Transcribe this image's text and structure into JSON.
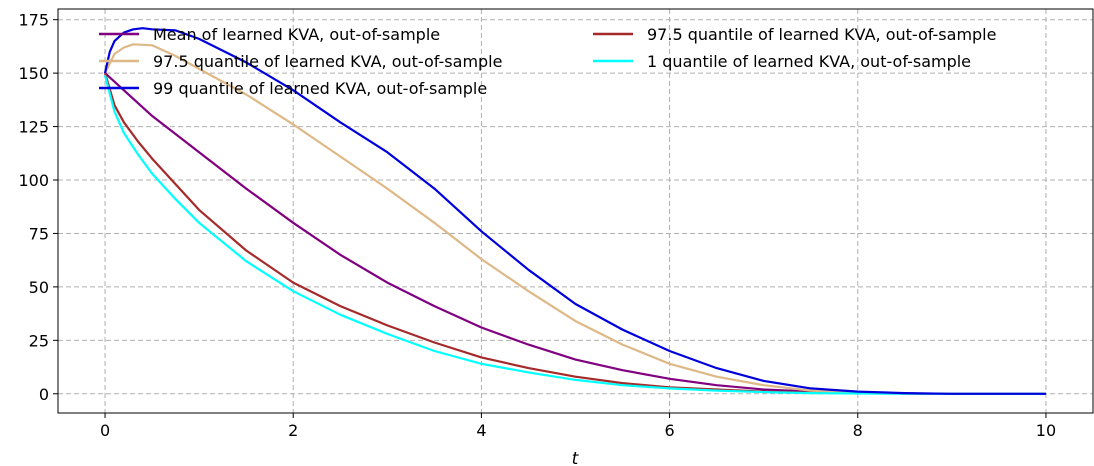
{
  "chart_data": {
    "type": "line",
    "title": "",
    "xlabel": "t",
    "ylabel": "",
    "xlim": [
      -0.5,
      10.5
    ],
    "ylim": [
      -9,
      180
    ],
    "xticks": [
      0,
      2,
      4,
      6,
      8,
      10
    ],
    "yticks": [
      0,
      25,
      50,
      75,
      100,
      125,
      150,
      175
    ],
    "xtick_labels": [
      "0",
      "2",
      "4",
      "6",
      "8",
      "10"
    ],
    "ytick_labels": [
      "0",
      "25",
      "50",
      "75",
      "100",
      "125",
      "150",
      "175"
    ],
    "grid": true,
    "grid_color": "#b0b0b0",
    "legend_position": "top, two columns",
    "series": [
      {
        "name": "Mean of learned KVA, out-of-sample",
        "color": "#800080",
        "x": [
          0,
          0.5,
          1,
          1.5,
          2,
          2.5,
          3,
          3.5,
          4,
          4.5,
          5,
          5.5,
          6,
          6.5,
          7,
          7.5,
          8,
          8.5,
          9,
          9.5,
          10
        ],
        "y": [
          150,
          130,
          113,
          96,
          80,
          65,
          52,
          41,
          31,
          23,
          16,
          11,
          7,
          4,
          2,
          1,
          0.3,
          0.1,
          0,
          0,
          0
        ]
      },
      {
        "name": "97.5 quantile of learned KVA, out-of-sample",
        "color": "#A52A2A",
        "x": [
          0,
          0.1,
          0.2,
          0.35,
          0.5,
          0.75,
          1,
          1.5,
          2,
          2.5,
          3,
          3.5,
          4,
          4.5,
          5,
          5.5,
          6,
          6.5,
          7,
          7.5,
          8,
          9,
          10
        ],
        "y": [
          150,
          135,
          127,
          118,
          110,
          98,
          86,
          67,
          52,
          41,
          32,
          24,
          17,
          12,
          8,
          5,
          3,
          2,
          1,
          0.5,
          0.2,
          0,
          0
        ]
      },
      {
        "name": "97.5 quantile of learned KVA, out-of-sample",
        "color": "#DEB887",
        "x": [
          0,
          0.1,
          0.2,
          0.3,
          0.5,
          0.75,
          1,
          1.5,
          2,
          2.5,
          3,
          3.5,
          4,
          4.5,
          5,
          5.5,
          6,
          6.5,
          7,
          7.5,
          8,
          8.5,
          9,
          9.5,
          10
        ],
        "y": [
          150,
          159,
          162,
          163.5,
          163,
          158,
          152,
          140,
          126,
          111,
          96,
          80,
          63,
          48,
          34,
          23,
          14,
          8,
          4,
          1.5,
          0.5,
          0.2,
          0,
          0,
          0
        ]
      },
      {
        "name": "1 quantile of learned KVA, out-of-sample",
        "color": "#00FFFF",
        "x": [
          0,
          0.1,
          0.2,
          0.35,
          0.5,
          0.75,
          1,
          1.5,
          2,
          2.5,
          3,
          3.5,
          4,
          4.5,
          5,
          5.5,
          6,
          6.5,
          7,
          7.5,
          8,
          9,
          10
        ],
        "y": [
          149,
          132,
          122,
          112,
          103,
          91,
          80,
          62,
          48,
          37,
          28,
          20,
          14,
          10,
          6.5,
          4,
          2.5,
          1.5,
          0.8,
          0.3,
          0.1,
          0,
          0
        ]
      },
      {
        "name": "99 quantile of learned KVA, out-of-sample",
        "color": "#0000DD",
        "x": [
          0,
          0.05,
          0.1,
          0.2,
          0.3,
          0.4,
          0.5,
          0.75,
          1,
          1.5,
          2,
          2.5,
          3,
          3.5,
          4,
          4.5,
          5,
          5.5,
          6,
          6.5,
          7,
          7.5,
          8,
          8.5,
          9,
          9.5,
          10
        ],
        "y": [
          150,
          160,
          165,
          169,
          170.5,
          171,
          170.5,
          170,
          166,
          155,
          142,
          127,
          113,
          96,
          76,
          58,
          42,
          30,
          20,
          12,
          6,
          2.5,
          1,
          0.3,
          0,
          0,
          0
        ]
      }
    ],
    "legend_order": [
      0,
      2,
      4,
      1,
      3
    ]
  }
}
